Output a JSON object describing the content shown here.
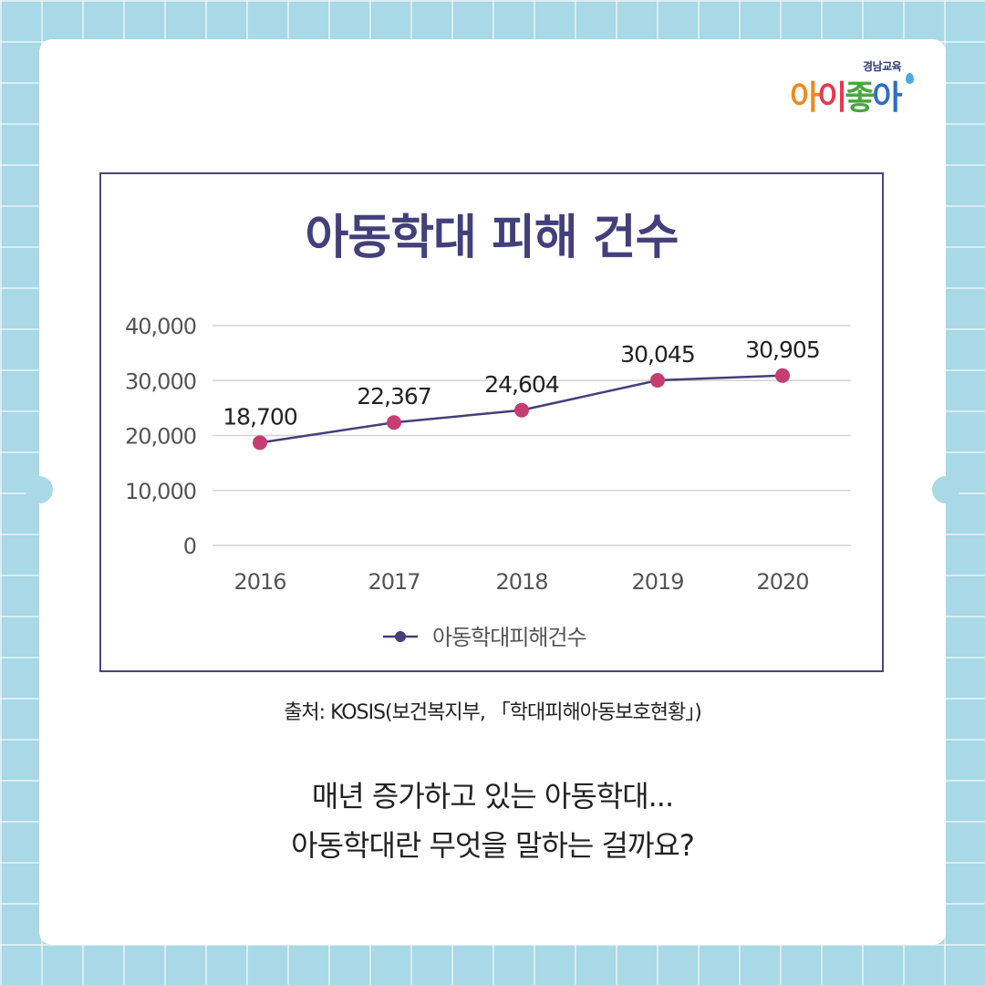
{
  "brand": {
    "top": "경남교육",
    "main": [
      "아",
      "이",
      "좋",
      "아"
    ]
  },
  "chart_data": {
    "type": "line",
    "title": "아동학대 피해 건수",
    "categories": [
      "2016",
      "2017",
      "2018",
      "2019",
      "2020"
    ],
    "series": [
      {
        "name": "아동학대피해건수",
        "values": [
          18700,
          22367,
          24604,
          30045,
          30905
        ],
        "color": "#433f7a",
        "marker_color": "#c63d72"
      }
    ],
    "data_labels": [
      "18,700",
      "22,367",
      "24,604",
      "30,045",
      "30,905"
    ],
    "ylim": [
      0,
      40000
    ],
    "yticks": [
      0,
      10000,
      20000,
      30000,
      40000
    ],
    "ytick_labels": [
      "0",
      "10,000",
      "20,000",
      "30,000",
      "40,000"
    ],
    "xlabel": "",
    "ylabel": "",
    "grid": true,
    "legend": "bottom"
  },
  "source": "출처: KOSIS(보건복지부, 「학대피해아동보호현황」)",
  "caption": {
    "line1": "매년 증가하고 있는 아동학대...",
    "line2": "아동학대란 무엇을 말하는 걸까요?"
  }
}
